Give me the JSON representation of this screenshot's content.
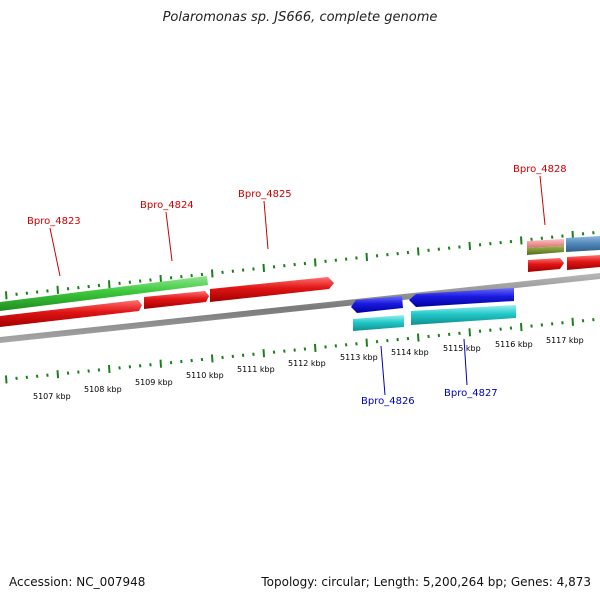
{
  "title": "Polaromonas sp. JS666, complete genome",
  "footer": {
    "accession": "Accession: NC_007948",
    "summary": "Topology: circular; Length: 5,200,264 bp; Genes: 4,873"
  },
  "colors": {
    "top_label": "#cc0000",
    "bottom_label": "#0000bb",
    "tick": "#1a7f1a",
    "backbone": "#8c8c8c"
  },
  "scale_labels": [
    "5107 kbp",
    "5108 kbp",
    "5109 kbp",
    "5110 kbp",
    "5111 kbp",
    "5112 kbp",
    "5113 kbp",
    "5114 kbp",
    "5115 kbp",
    "5116 kbp",
    "5117 kbp"
  ],
  "gene_labels_top": [
    "Bpro_4823",
    "Bpro_4824",
    "Bpro_4825",
    "Bpro_4828"
  ],
  "gene_labels_bottom": [
    "Bpro_4826",
    "Bpro_4827"
  ],
  "features": [
    {
      "name": "green-track-arrow",
      "color": "#3cc83c"
    },
    {
      "name": "red-gene-4823",
      "color": "#e01414"
    },
    {
      "name": "red-gene-4824",
      "color": "#e01414"
    },
    {
      "name": "red-gene-4825",
      "color": "#e01414"
    },
    {
      "name": "blue-gene-4826",
      "color": "#1a1ae0"
    },
    {
      "name": "blue-gene-4827",
      "color": "#1a1ae0"
    },
    {
      "name": "cyan-track-4826",
      "color": "#22c8c8"
    },
    {
      "name": "cyan-track-4827",
      "color": "#22c8c8"
    },
    {
      "name": "pink-track-4828",
      "color": "#e88a8a"
    },
    {
      "name": "olive-track-4828",
      "color": "#6f8a2a"
    },
    {
      "name": "red-gene-4828",
      "color": "#e01414"
    },
    {
      "name": "steel-blue-feature",
      "color": "#4f86b8"
    },
    {
      "name": "red-gene-right",
      "color": "#e01414"
    }
  ]
}
